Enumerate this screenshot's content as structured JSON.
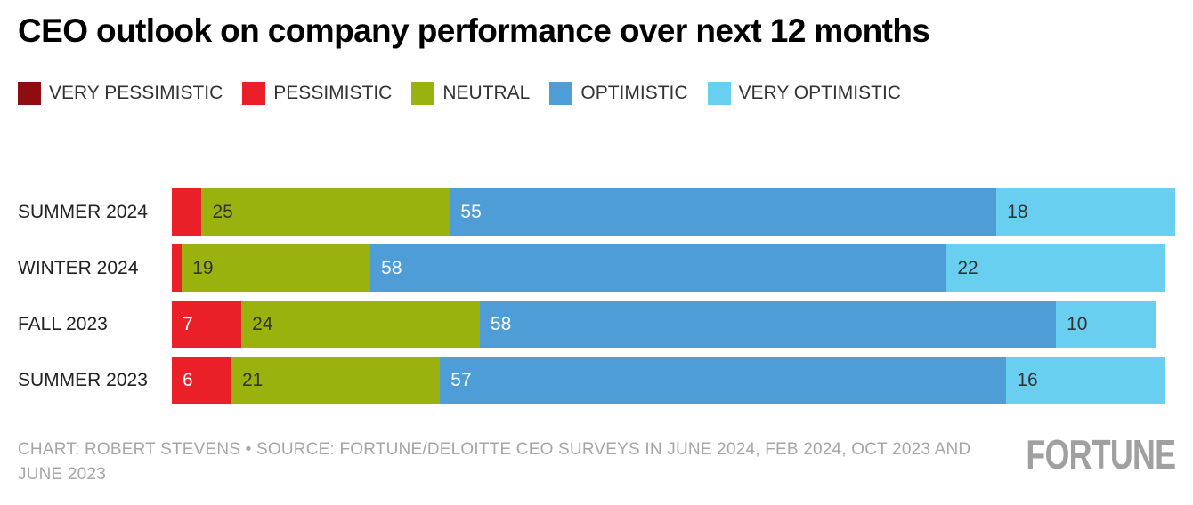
{
  "title": "CEO outlook on company performance over next 12 months",
  "legend": [
    {
      "label": "VERY PESSIMISTIC",
      "color": "#8e0d11"
    },
    {
      "label": "PESSIMISTIC",
      "color": "#ea1f27"
    },
    {
      "label": "NEUTRAL",
      "color": "#9bb20e"
    },
    {
      "label": "OPTIMISTIC",
      "color": "#4e9dd6"
    },
    {
      "label": "VERY OPTIMISTIC",
      "color": "#68cff0"
    }
  ],
  "chart_data": {
    "type": "bar",
    "orientation": "horizontal",
    "stacked": true,
    "grid": false,
    "legend_position": "top",
    "categories": [
      "SUMMER 2024",
      "WINTER 2024",
      "FALL 2023",
      "SUMMER 2023"
    ],
    "series": [
      {
        "name": "VERY PESSIMISTIC",
        "color": "#8e0d11",
        "text_color": "#ffffff",
        "values": [
          0,
          0,
          0,
          0
        ]
      },
      {
        "name": "PESSIMISTIC",
        "color": "#ea1f27",
        "text_color": "#ffffff",
        "values": [
          3,
          1,
          7,
          6
        ]
      },
      {
        "name": "NEUTRAL",
        "color": "#9bb20e",
        "text_color": "#333333",
        "values": [
          25,
          19,
          24,
          21
        ]
      },
      {
        "name": "OPTIMISTIC",
        "color": "#4e9dd6",
        "text_color": "#ffffff",
        "values": [
          55,
          58,
          58,
          57
        ]
      },
      {
        "name": "VERY OPTIMISTIC",
        "color": "#68cff0",
        "text_color": "#333333",
        "values": [
          18,
          22,
          10,
          16
        ]
      }
    ],
    "label_min_value": 6,
    "xmax": 101,
    "xlabel": "",
    "ylabel": ""
  },
  "footer": {
    "credit": "CHART: ROBERT STEVENS • SOURCE: FORTUNE/DELOITTE CEO SURVEYS IN JUNE 2024, FEB 2024, OCT 2023 AND JUNE 2023",
    "brand": "FORTUNE"
  }
}
